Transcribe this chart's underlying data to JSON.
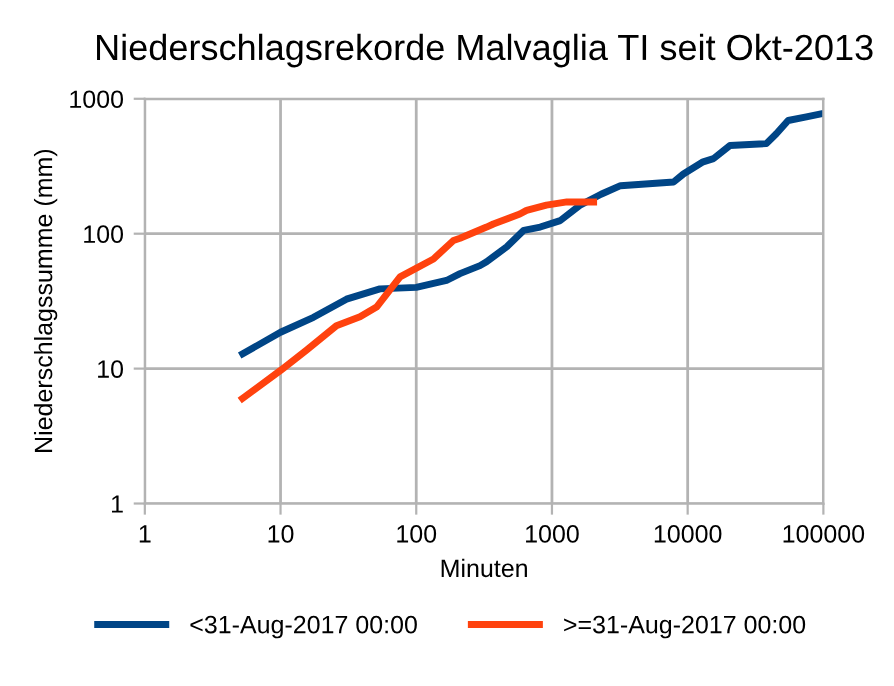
{
  "chart_data": {
    "type": "line",
    "title": "Niederschlagsrekorde Malvaglia TI seit Okt-2013",
    "xlabel": "Minuten",
    "ylabel": "Niederschlagssumme (mm)",
    "log": "xy",
    "grid": true,
    "legend": "bottom",
    "marker": "none",
    "line_style": "solid",
    "xlim": [
      1,
      100000
    ],
    "xticks": [
      1,
      10,
      100,
      1000,
      10000,
      100000
    ],
    "ylim": [
      1,
      1000
    ],
    "yticks": [
      1,
      10,
      100,
      1000
    ],
    "series": [
      {
        "name": "<31-Aug-2017 00:00",
        "color": "#004586",
        "x": [
          5,
          10,
          17.5,
          30.6,
          54,
          100,
          167,
          210,
          295,
          330,
          465,
          620,
          820,
          1150,
          1600,
          2300,
          3200,
          7900,
          9300,
          13000,
          15500,
          20500,
          38000,
          45000,
          55000,
          75000,
          100000
        ],
        "values": [
          12.5,
          18.6,
          24,
          32.7,
          39,
          40,
          45,
          50.6,
          58,
          62,
          80,
          106,
          112,
          125,
          162,
          196,
          227,
          242,
          277,
          341,
          360,
          450,
          465,
          550,
          690,
          735,
          780
        ]
      },
      {
        "name": ">=31-Aug-2017 00:00",
        "color": "#ff420e",
        "x": [
          5,
          10,
          15.5,
          25.8,
          38.5,
          51,
          76,
          134,
          188,
          210,
          330,
          370,
          580,
          650,
          910,
          1290,
          2150
        ],
        "values": [
          5.8,
          9.7,
          13.7,
          20.8,
          24.2,
          28.6,
          47.9,
          65,
          89,
          92.5,
          112,
          118,
          140,
          149,
          163,
          172,
          172
        ]
      }
    ]
  }
}
